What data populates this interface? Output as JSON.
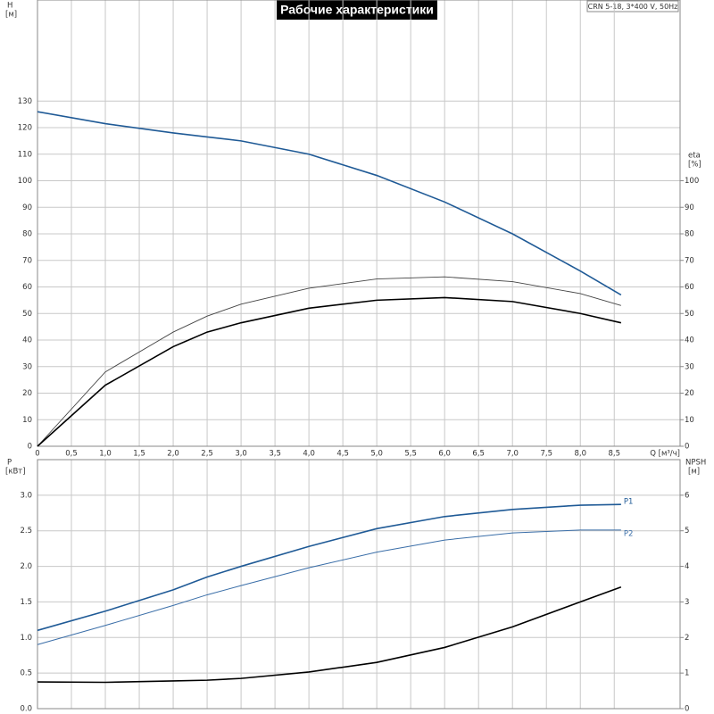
{
  "chart_data": [
    {
      "type": "line",
      "title": "Рабочие характеристики",
      "subtitle": "CRN 5-18, 3*400 V, 50Hz",
      "x_label": "Q [м³/ч]",
      "y_label": [
        "H",
        "[м]"
      ],
      "y2_label": [
        "eta",
        "[%]"
      ],
      "grid": true,
      "x": [
        0,
        1,
        2,
        2.5,
        3,
        4,
        5,
        6,
        7,
        8,
        8.6
      ],
      "xlim": [
        0,
        9.47
      ],
      "xticks": [
        0,
        {
          "value": 0.5,
          "label": "0,5"
        },
        {
          "value": 1,
          "label": "1,0"
        },
        {
          "value": 1.5,
          "label": "1,5"
        },
        {
          "value": 2,
          "label": "2,0"
        },
        {
          "value": 2.5,
          "label": "2,5"
        },
        {
          "value": 3,
          "label": "3,0"
        },
        {
          "value": 3.5,
          "label": "3,5"
        },
        {
          "value": 4,
          "label": "4,0"
        },
        {
          "value": 4.5,
          "label": "4,5"
        },
        {
          "value": 5,
          "label": "5,0"
        },
        {
          "value": 5.5,
          "label": "5,5"
        },
        {
          "value": 6,
          "label": "6,0"
        },
        {
          "value": 6.5,
          "label": "6,5"
        },
        {
          "value": 7,
          "label": "7,0"
        },
        {
          "value": 7.5,
          "label": "7,5"
        },
        {
          "value": 8,
          "label": "8,0"
        },
        {
          "value": 8.5,
          "label": "8,5"
        }
      ],
      "ylim": [
        0,
        160
      ],
      "yticks": [
        0,
        10,
        20,
        30,
        40,
        50,
        60,
        70,
        80,
        90,
        100,
        110,
        120,
        130
      ],
      "y2lim": [
        0,
        160
      ],
      "y2ticks": [
        0,
        10,
        20,
        30,
        40,
        50,
        60,
        70,
        80,
        90,
        100
      ],
      "series": [
        {
          "color": "#1f5a96",
          "values": [
            126,
            121.5,
            118,
            116.5,
            115,
            110,
            102,
            92,
            80,
            66,
            57
          ]
        },
        {
          "color": "#444444",
          "axis": "y2",
          "values": [
            0,
            28,
            43,
            49,
            53.5,
            59.5,
            63,
            63.8,
            62,
            57.5,
            53
          ]
        },
        {
          "color": "#000000",
          "axis": "y2",
          "values": [
            0,
            23,
            37.5,
            43,
            46.5,
            52,
            55,
            56,
            54.5,
            50,
            46.5
          ]
        }
      ]
    },
    {
      "type": "line",
      "y_label": [
        "P",
        "[кВт]"
      ],
      "y2_label": [
        "NPSH",
        "[м]"
      ],
      "grid": true,
      "x": [
        0,
        1,
        2,
        2.5,
        3,
        4,
        5,
        6,
        7,
        8,
        8.6
      ],
      "xlim": [
        0,
        9.47
      ],
      "xticks": [
        0,
        0.5,
        1,
        1.5,
        2,
        2.5,
        3,
        3.5,
        4,
        4.5,
        5,
        5.5,
        6,
        6.5,
        7,
        7.5,
        8,
        8.5
      ],
      "ylim": [
        0,
        3.5
      ],
      "yticks": [
        {
          "value": 0,
          "label": "0.0"
        },
        0.5,
        {
          "value": 1,
          "label": "1.0"
        },
        1.5,
        {
          "value": 2,
          "label": "2.0"
        },
        2.5,
        {
          "value": 3,
          "label": "3.0"
        }
      ],
      "y2lim": [
        0,
        7
      ],
      "y2ticks": [
        0,
        1,
        2,
        3,
        4,
        5,
        6
      ],
      "series": [
        {
          "name": "P1",
          "color": "#1f5a96",
          "values": [
            1.1,
            1.37,
            1.67,
            1.85,
            2.0,
            2.28,
            2.53,
            2.7,
            2.8,
            2.86,
            2.87
          ]
        },
        {
          "name": "P2",
          "color": "#3a6ea8",
          "values": [
            0.9,
            1.17,
            1.45,
            1.6,
            1.73,
            1.98,
            2.2,
            2.37,
            2.47,
            2.51,
            2.51
          ]
        },
        {
          "color": "#000000",
          "axis": "y2",
          "values": [
            0.75,
            0.74,
            0.78,
            0.8,
            0.85,
            1.03,
            1.3,
            1.72,
            2.3,
            3.0,
            3.42
          ]
        }
      ]
    }
  ]
}
